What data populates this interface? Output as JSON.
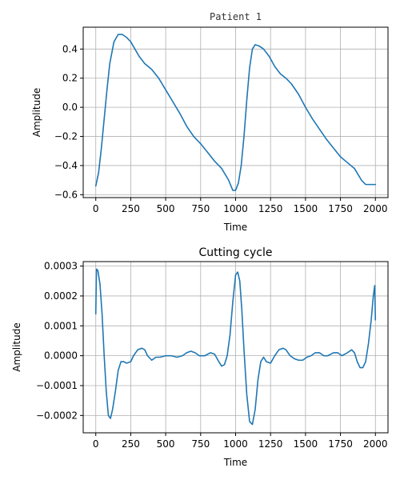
{
  "chart_data": [
    {
      "type": "line",
      "title": "Patient 1",
      "xlabel": "Time",
      "ylabel": "Amplitude",
      "xlim": [
        -90,
        2090
      ],
      "ylim": [
        -0.62,
        0.55
      ],
      "xticks": [
        0,
        250,
        500,
        750,
        1000,
        1250,
        1500,
        1750,
        2000
      ],
      "xtick_labels": [
        "0",
        "250",
        "500",
        "750",
        "1000",
        "1250",
        "1500",
        "1750",
        "2000"
      ],
      "yticks": [
        -0.6,
        -0.4,
        -0.2,
        0.0,
        0.2,
        0.4
      ],
      "ytick_labels": [
        "−0.6",
        "−0.4",
        "−0.2",
        "0.0",
        "0.2",
        "0.4"
      ],
      "grid": true,
      "series": [
        {
          "color": "#1f77b4",
          "x": [
            0,
            20,
            40,
            60,
            80,
            100,
            130,
            160,
            190,
            220,
            250,
            280,
            310,
            350,
            400,
            450,
            500,
            550,
            600,
            650,
            700,
            750,
            800,
            850,
            900,
            950,
            980,
            1000,
            1020,
            1040,
            1060,
            1080,
            1100,
            1120,
            1140,
            1170,
            1200,
            1240,
            1280,
            1320,
            1360,
            1400,
            1450,
            1500,
            1550,
            1600,
            1650,
            1700,
            1750,
            1800,
            1850,
            1900,
            1930,
            1960,
            1980,
            2000
          ],
          "y": [
            -0.54,
            -0.45,
            -0.28,
            -0.08,
            0.12,
            0.3,
            0.45,
            0.5,
            0.5,
            0.48,
            0.45,
            0.4,
            0.35,
            0.3,
            0.26,
            0.2,
            0.12,
            0.04,
            -0.04,
            -0.13,
            -0.2,
            -0.25,
            -0.31,
            -0.37,
            -0.42,
            -0.5,
            -0.57,
            -0.57,
            -0.52,
            -0.4,
            -0.2,
            0.05,
            0.27,
            0.4,
            0.43,
            0.42,
            0.4,
            0.35,
            0.28,
            0.23,
            0.2,
            0.16,
            0.09,
            0.0,
            -0.08,
            -0.15,
            -0.22,
            -0.28,
            -0.34,
            -0.38,
            -0.42,
            -0.5,
            -0.53,
            -0.53,
            -0.53,
            -0.53
          ]
        }
      ]
    },
    {
      "type": "line",
      "title": "Cutting cycle",
      "xlabel": "Time",
      "ylabel": "Amplitude",
      "xlim": [
        -90,
        2090
      ],
      "ylim": [
        -0.000258,
        0.000315
      ],
      "xticks": [
        0,
        250,
        500,
        750,
        1000,
        1250,
        1500,
        1750,
        2000
      ],
      "xtick_labels": [
        "0",
        "250",
        "500",
        "750",
        "1000",
        "1250",
        "1500",
        "1750",
        "2000"
      ],
      "yticks": [
        -0.0002,
        -0.0001,
        0.0,
        0.0001,
        0.0002,
        0.0003
      ],
      "ytick_labels": [
        "−0.0002",
        "−0.0001",
        "0.0000",
        "0.0001",
        "0.0002",
        "0.0003"
      ],
      "grid": true,
      "series": [
        {
          "color": "#1f77b4",
          "x": [
            0,
            5,
            15,
            30,
            45,
            60,
            75,
            90,
            105,
            120,
            140,
            160,
            180,
            200,
            220,
            250,
            270,
            300,
            330,
            350,
            370,
            400,
            430,
            460,
            500,
            540,
            580,
            620,
            650,
            680,
            710,
            740,
            780,
            820,
            850,
            880,
            900,
            920,
            940,
            960,
            980,
            1000,
            1015,
            1030,
            1045,
            1060,
            1080,
            1100,
            1120,
            1140,
            1160,
            1180,
            1200,
            1220,
            1250,
            1280,
            1310,
            1340,
            1360,
            1390,
            1420,
            1450,
            1480,
            1510,
            1540,
            1570,
            1600,
            1630,
            1660,
            1700,
            1730,
            1760,
            1800,
            1830,
            1850,
            1870,
            1890,
            1910,
            1930,
            1950,
            1970,
            1985,
            1995,
            2000
          ],
          "y": [
            0.00014,
            0.00029,
            0.000285,
            0.00024,
            0.00014,
            0.0,
            -0.00012,
            -0.0002,
            -0.00021,
            -0.00018,
            -0.00012,
            -5e-05,
            -2e-05,
            -2e-05,
            -2.5e-05,
            -2e-05,
            0.0,
            2e-05,
            2.5e-05,
            2e-05,
            0.0,
            -1.5e-05,
            -5e-06,
            -5e-06,
            0.0,
            0.0,
            -5e-06,
            0.0,
            1e-05,
            1.5e-05,
            1e-05,
            0.0,
            0.0,
            1e-05,
            5e-06,
            -2e-05,
            -3.5e-05,
            -3e-05,
            0.0,
            7e-05,
            0.00018,
            0.00027,
            0.00028,
            0.00025,
            0.00015,
            2e-05,
            -0.00013,
            -0.00022,
            -0.00023,
            -0.00018,
            -8e-05,
            -2e-05,
            -5e-06,
            -2e-05,
            -2.5e-05,
            0.0,
            2e-05,
            2.5e-05,
            2e-05,
            0.0,
            -1e-05,
            -1.5e-05,
            -1.5e-05,
            -5e-06,
            0.0,
            1e-05,
            1e-05,
            0.0,
            0.0,
            1e-05,
            1e-05,
            0.0,
            1e-05,
            2e-05,
            1e-05,
            -2e-05,
            -4e-05,
            -4e-05,
            -2e-05,
            4e-05,
            0.00012,
            0.0002,
            0.000235,
            0.00012
          ]
        }
      ]
    }
  ]
}
